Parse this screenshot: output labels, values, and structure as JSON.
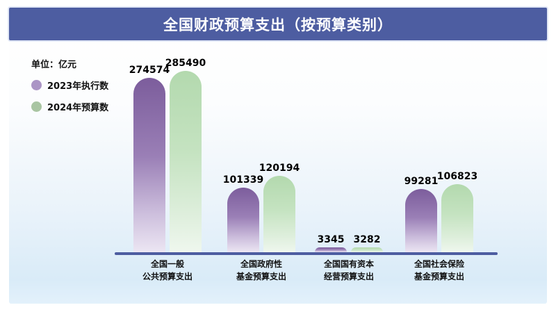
{
  "title": "全国财政预算支出（按预算类别）",
  "unit_label": "单位：亿元",
  "legend": [
    {
      "label": "2023年执行数",
      "color": "#ab95c5"
    },
    {
      "label": "2024年预算数",
      "color": "#a9c5a2"
    }
  ],
  "colors": {
    "title_bar": "#4d5da1",
    "axis": "#4d5da1",
    "series_2023_top": "#7c5d9c",
    "series_2023_fade": "#ece6f3",
    "series_2024_top": "#b3d9ae",
    "series_2024_fade": "#eff7ee",
    "panel_bottom": "#d9ebf8",
    "text": "#111111"
  },
  "chart_data": {
    "type": "bar",
    "title": "全国财政预算支出（按预算类别）",
    "unit": "亿元",
    "categories": [
      "全国一般\n公共预算支出",
      "全国政府性\n基金预算支出",
      "全国国有资本\n经营预算支出",
      "全国社会保险\n基金预算支出"
    ],
    "series": [
      {
        "name": "2023年执行数",
        "values": [
          274574,
          101339,
          3345,
          99281
        ]
      },
      {
        "name": "2024年预算数",
        "values": [
          285490,
          120194,
          3282,
          106823
        ]
      }
    ],
    "ylim": [
      0,
      285490
    ],
    "grid": false,
    "value_labels": true,
    "legend_position": "top-left"
  }
}
